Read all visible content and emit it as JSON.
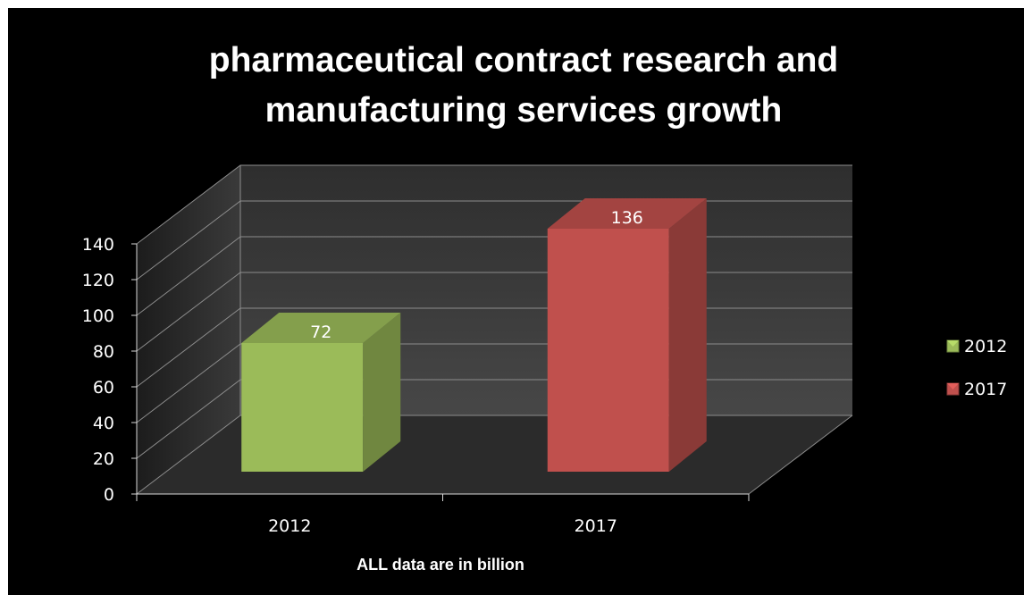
{
  "chart_data": {
    "type": "bar",
    "title": "pharmaceutical  contract research and manufacturing services growth",
    "title_lines": [
      "pharmaceutical  contract research and",
      "manufacturing services growth"
    ],
    "categories": [
      "2012",
      "2017"
    ],
    "values": [
      72,
      136
    ],
    "series": [
      {
        "name": "2012",
        "values": [
          72,
          null
        ],
        "color": "#9bbb59"
      },
      {
        "name": "2017",
        "values": [
          null,
          136
        ],
        "color": "#c0504d"
      }
    ],
    "xlabel": "ALL data are in billion",
    "ylabel": "",
    "ylim": [
      0,
      140
    ],
    "yticks": [
      0,
      20,
      40,
      60,
      80,
      100,
      120,
      140
    ],
    "data_labels": [
      "72",
      "136"
    ],
    "grid": true,
    "legend_position": "right",
    "style": "3d-column",
    "background": "#000000",
    "wall_color": "#3a3a3a",
    "floor_color": "#2b2b2b"
  }
}
